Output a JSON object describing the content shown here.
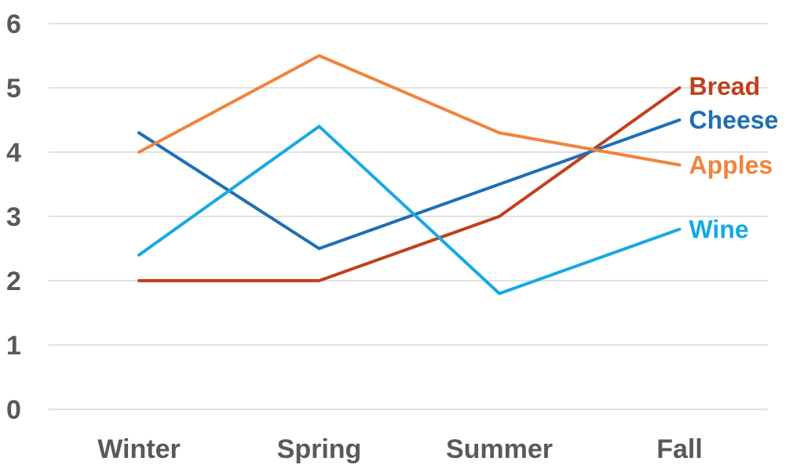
{
  "chart_data": {
    "type": "line",
    "categories": [
      "Winter",
      "Spring",
      "Summer",
      "Fall"
    ],
    "ylim": [
      0,
      6
    ],
    "yticks": [
      0,
      1,
      2,
      3,
      4,
      5,
      6
    ],
    "grid": true,
    "legend": "inline-right",
    "series": [
      {
        "name": "Bread",
        "color": "#c0401b",
        "values": [
          2.0,
          2.0,
          3.0,
          5.0
        ]
      },
      {
        "name": "Cheese",
        "color": "#1f6fb5",
        "values": [
          4.3,
          2.5,
          3.5,
          4.5
        ]
      },
      {
        "name": "Apples",
        "color": "#f0843c",
        "values": [
          4.0,
          5.5,
          4.3,
          3.8
        ]
      },
      {
        "name": "Wine",
        "color": "#17a9e4",
        "values": [
          2.4,
          4.4,
          1.8,
          2.8
        ]
      }
    ]
  }
}
